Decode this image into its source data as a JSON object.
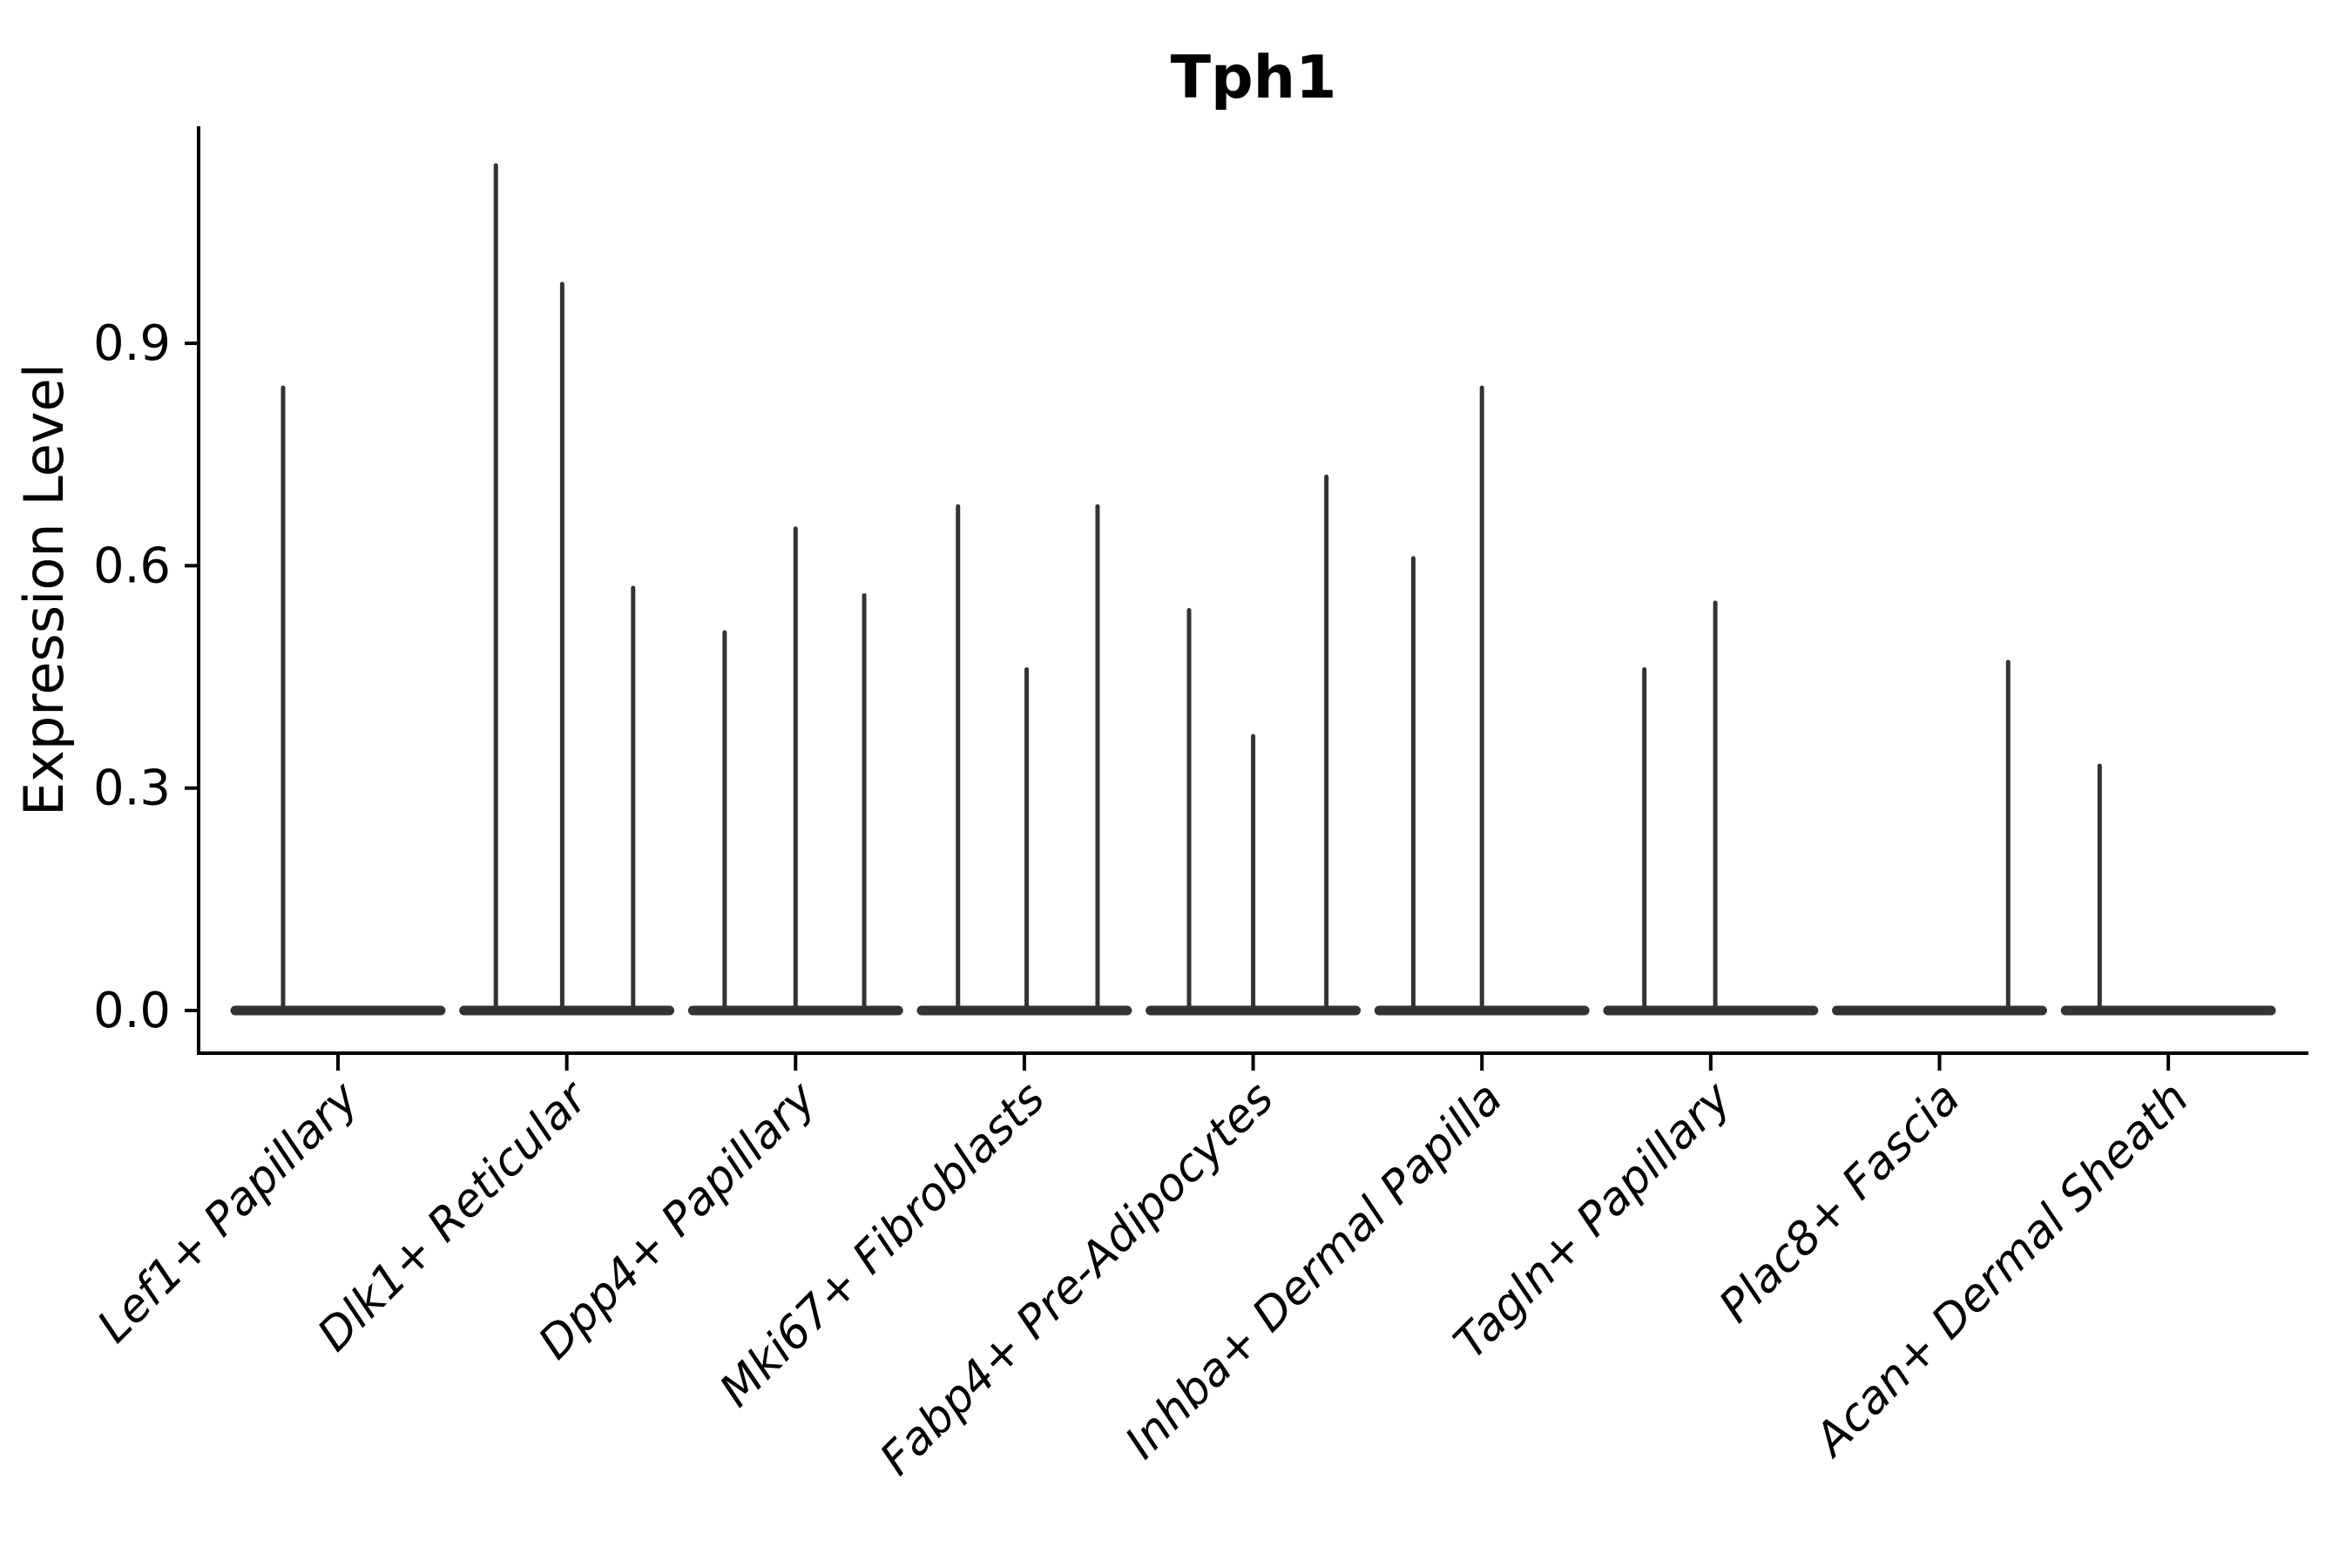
{
  "chart_data": {
    "type": "violin",
    "title": "Tph1",
    "ylabel": "Expression Level",
    "xlabel": "",
    "ytick_values": [
      0.0,
      0.3,
      0.6,
      0.9
    ],
    "ytick_labels": [
      "0.0",
      "0.3",
      "0.6",
      "0.9"
    ],
    "ylim": [
      -0.06,
      1.19
    ],
    "grid": false,
    "legend": false,
    "style": {
      "violin_color": "#333333",
      "axis_color": "#000000",
      "text_color": "#000000",
      "background": "#ffffff",
      "title_bold": true,
      "xtick_rotation_deg": 45,
      "xtick_italic": true
    },
    "categories": [
      "Lef1+ Papillary",
      "Dlk1+ Reticular",
      "Dpp4+ Papillary",
      "Mki67+ Fibroblasts",
      "Fabp4+ Pre-Adipocytes",
      "Inhba+ Dermal Papilla",
      "Tagln+ Papillary",
      "Plac8+ Fascia",
      "Acan+ Dermal Sheath"
    ],
    "violins": [
      {
        "category": "Lef1+ Papillary",
        "base_halfwidth_frac": 0.47,
        "spikes": [
          {
            "offset_frac": -0.24,
            "max_value": 0.84
          }
        ]
      },
      {
        "category": "Dlk1+ Reticular",
        "base_halfwidth_frac": 0.47,
        "spikes": [
          {
            "offset_frac": -0.31,
            "max_value": 1.14
          },
          {
            "offset_frac": -0.02,
            "max_value": 0.98
          },
          {
            "offset_frac": 0.29,
            "max_value": 0.57
          }
        ]
      },
      {
        "category": "Dpp4+ Papillary",
        "base_halfwidth_frac": 0.47,
        "spikes": [
          {
            "offset_frac": -0.31,
            "max_value": 0.51
          },
          {
            "offset_frac": 0.0,
            "max_value": 0.65
          },
          {
            "offset_frac": 0.3,
            "max_value": 0.56
          }
        ]
      },
      {
        "category": "Mki67+ Fibroblasts",
        "base_halfwidth_frac": 0.47,
        "spikes": [
          {
            "offset_frac": -0.29,
            "max_value": 0.68
          },
          {
            "offset_frac": 0.01,
            "max_value": 0.46
          },
          {
            "offset_frac": 0.32,
            "max_value": 0.68
          }
        ]
      },
      {
        "category": "Fabp4+ Pre-Adipocytes",
        "base_halfwidth_frac": 0.47,
        "spikes": [
          {
            "offset_frac": -0.28,
            "max_value": 0.54
          },
          {
            "offset_frac": 0.0,
            "max_value": 0.37
          },
          {
            "offset_frac": 0.32,
            "max_value": 0.72
          }
        ]
      },
      {
        "category": "Inhba+ Dermal Papilla",
        "base_halfwidth_frac": 0.47,
        "spikes": [
          {
            "offset_frac": -0.3,
            "max_value": 0.61
          },
          {
            "offset_frac": 0.0,
            "max_value": 0.84
          }
        ]
      },
      {
        "category": "Tagln+ Papillary",
        "base_halfwidth_frac": 0.47,
        "spikes": [
          {
            "offset_frac": -0.29,
            "max_value": 0.46
          },
          {
            "offset_frac": 0.02,
            "max_value": 0.55
          }
        ]
      },
      {
        "category": "Plac8+ Fascia",
        "base_halfwidth_frac": 0.47,
        "spikes": [
          {
            "offset_frac": 0.3,
            "max_value": 0.47
          }
        ]
      },
      {
        "category": "Acan+ Dermal Sheath",
        "base_halfwidth_frac": 0.47,
        "spikes": [
          {
            "offset_frac": -0.3,
            "max_value": 0.33
          }
        ]
      }
    ]
  }
}
